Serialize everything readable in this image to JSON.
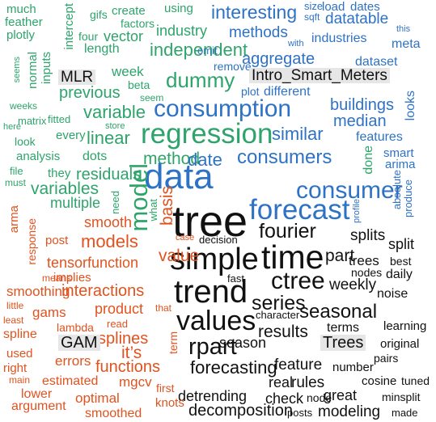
{
  "colors": {
    "green": "#2ea46b",
    "blue": "#2e72c6",
    "orange": "#e0531f",
    "black": "#111111",
    "tag_bg": "#e6e6e6"
  },
  "words": [
    {
      "text": "much",
      "c": "green"
    },
    {
      "text": "feather",
      "c": "green"
    },
    {
      "text": "plotly",
      "c": "green"
    },
    {
      "text": "seems",
      "c": "green"
    },
    {
      "text": "normal",
      "c": "green"
    },
    {
      "text": "inputs",
      "c": "green"
    },
    {
      "text": "intercept",
      "c": "green"
    },
    {
      "text": "gifs",
      "c": "green"
    },
    {
      "text": "four",
      "c": "green"
    },
    {
      "text": "create",
      "c": "green"
    },
    {
      "text": "factors",
      "c": "green"
    },
    {
      "text": "vector",
      "c": "green"
    },
    {
      "text": "length",
      "c": "green"
    },
    {
      "text": "using",
      "c": "green"
    },
    {
      "text": "industry",
      "c": "green"
    },
    {
      "text": "independent",
      "c": "green"
    },
    {
      "text": "omit",
      "c": "blue"
    },
    {
      "text": "remove",
      "c": "blue"
    },
    {
      "text": "interesting",
      "c": "blue"
    },
    {
      "text": "methods",
      "c": "blue"
    },
    {
      "text": "aggregate",
      "c": "blue"
    },
    {
      "text": "with",
      "c": "blue"
    },
    {
      "text": "size",
      "c": "blue"
    },
    {
      "text": "sqft",
      "c": "blue"
    },
    {
      "text": "load",
      "c": "blue"
    },
    {
      "text": "dates",
      "c": "blue"
    },
    {
      "text": "datatable",
      "c": "blue"
    },
    {
      "text": "this",
      "c": "blue"
    },
    {
      "text": "industries",
      "c": "blue"
    },
    {
      "text": "meta",
      "c": "blue"
    },
    {
      "text": "dataset",
      "c": "blue"
    },
    {
      "text": "MLR",
      "c": "black",
      "tag": true
    },
    {
      "text": "Intro_Smart_Meters",
      "c": "black",
      "tag": true
    },
    {
      "text": "week",
      "c": "green"
    },
    {
      "text": "beta",
      "c": "green"
    },
    {
      "text": "dummy",
      "c": "green"
    },
    {
      "text": "seem",
      "c": "green"
    },
    {
      "text": "plot",
      "c": "blue"
    },
    {
      "text": "different",
      "c": "blue"
    },
    {
      "text": "weeks",
      "c": "green"
    },
    {
      "text": "matrix",
      "c": "green"
    },
    {
      "text": "fitted",
      "c": "green"
    },
    {
      "text": "previous",
      "c": "green"
    },
    {
      "text": "variable",
      "c": "green"
    },
    {
      "text": "consumption",
      "c": "blue"
    },
    {
      "text": "buildings",
      "c": "blue"
    },
    {
      "text": "looks",
      "c": "blue"
    },
    {
      "text": "here",
      "c": "green"
    },
    {
      "text": "look",
      "c": "green"
    },
    {
      "text": "every",
      "c": "green"
    },
    {
      "text": "linear",
      "c": "green"
    },
    {
      "text": "store",
      "c": "green"
    },
    {
      "text": "regression",
      "c": "green"
    },
    {
      "text": "similar",
      "c": "blue"
    },
    {
      "text": "median",
      "c": "blue"
    },
    {
      "text": "features",
      "c": "blue"
    },
    {
      "text": "smart",
      "c": "blue"
    },
    {
      "text": "arima",
      "c": "blue"
    },
    {
      "text": "analysis",
      "c": "green"
    },
    {
      "text": "dots",
      "c": "green"
    },
    {
      "text": "method",
      "c": "green"
    },
    {
      "text": "date",
      "c": "blue"
    },
    {
      "text": "consumers",
      "c": "blue"
    },
    {
      "text": "done",
      "c": "green"
    },
    {
      "text": "file",
      "c": "green"
    },
    {
      "text": "they",
      "c": "green"
    },
    {
      "text": "must",
      "c": "green"
    },
    {
      "text": "residuals",
      "c": "green"
    },
    {
      "text": "variables",
      "c": "green"
    },
    {
      "text": "data",
      "c": "blue"
    },
    {
      "text": "consumer",
      "c": "blue"
    },
    {
      "text": "absolute",
      "c": "blue"
    },
    {
      "text": "produce",
      "c": "blue"
    },
    {
      "text": "need",
      "c": "green"
    },
    {
      "text": "model",
      "c": "green"
    },
    {
      "text": "multiple",
      "c": "green"
    },
    {
      "text": "what",
      "c": "green"
    },
    {
      "text": "basis",
      "c": "orange"
    },
    {
      "text": "forecast",
      "c": "blue"
    },
    {
      "text": "profile",
      "c": "blue"
    },
    {
      "text": "arma",
      "c": "orange"
    },
    {
      "text": "response",
      "c": "orange"
    },
    {
      "text": "smooth",
      "c": "orange"
    },
    {
      "text": "tree",
      "c": "black"
    },
    {
      "text": "fourier",
      "c": "black"
    },
    {
      "text": "splits",
      "c": "black"
    },
    {
      "text": "split",
      "c": "black"
    },
    {
      "text": "post",
      "c": "orange"
    },
    {
      "text": "models",
      "c": "orange"
    },
    {
      "text": "case",
      "c": "orange"
    },
    {
      "text": "decision",
      "c": "black"
    },
    {
      "text": "time",
      "c": "black"
    },
    {
      "text": "simple",
      "c": "black"
    },
    {
      "text": "part",
      "c": "black"
    },
    {
      "text": "trees",
      "c": "black"
    },
    {
      "text": "best",
      "c": "black"
    },
    {
      "text": "tensorfunction",
      "c": "orange"
    },
    {
      "text": "value",
      "c": "orange"
    },
    {
      "text": "nodes",
      "c": "black"
    },
    {
      "text": "daily",
      "c": "black"
    },
    {
      "text": "means",
      "c": "orange"
    },
    {
      "text": "implies",
      "c": "orange"
    },
    {
      "text": "smoothing",
      "c": "orange"
    },
    {
      "text": "interactions",
      "c": "orange"
    },
    {
      "text": "fast",
      "c": "black"
    },
    {
      "text": "ctree",
      "c": "black"
    },
    {
      "text": "weekly",
      "c": "black"
    },
    {
      "text": "noise",
      "c": "black"
    },
    {
      "text": "trend",
      "c": "black"
    },
    {
      "text": "little",
      "c": "orange"
    },
    {
      "text": "least",
      "c": "orange"
    },
    {
      "text": "gams",
      "c": "orange"
    },
    {
      "text": "product",
      "c": "orange"
    },
    {
      "text": "that",
      "c": "orange"
    },
    {
      "text": "series",
      "c": "black"
    },
    {
      "text": "seasonal",
      "c": "black"
    },
    {
      "text": "character",
      "c": "black"
    },
    {
      "text": "spline",
      "c": "orange"
    },
    {
      "text": "lambda",
      "c": "orange"
    },
    {
      "text": "read",
      "c": "orange"
    },
    {
      "text": "splines",
      "c": "orange"
    },
    {
      "text": "values",
      "c": "black"
    },
    {
      "text": "results",
      "c": "black"
    },
    {
      "text": "terms",
      "c": "black"
    },
    {
      "text": "learning",
      "c": "black"
    },
    {
      "text": "GAM",
      "c": "black",
      "tag": true
    },
    {
      "text": "it’s",
      "c": "orange"
    },
    {
      "text": "term",
      "c": "orange"
    },
    {
      "text": "season",
      "c": "black"
    },
    {
      "text": "Trees",
      "c": "black",
      "tag": true
    },
    {
      "text": "original",
      "c": "black"
    },
    {
      "text": "used",
      "c": "orange"
    },
    {
      "text": "errors",
      "c": "orange"
    },
    {
      "text": "rpart",
      "c": "black"
    },
    {
      "text": "pairs",
      "c": "black"
    },
    {
      "text": "right",
      "c": "orange"
    },
    {
      "text": "functions",
      "c": "orange"
    },
    {
      "text": "forecasting",
      "c": "black"
    },
    {
      "text": "feature",
      "c": "black"
    },
    {
      "text": "number",
      "c": "black"
    },
    {
      "text": "main",
      "c": "orange"
    },
    {
      "text": "estimated",
      "c": "orange"
    },
    {
      "text": "mgcv",
      "c": "orange"
    },
    {
      "text": "real",
      "c": "black"
    },
    {
      "text": "rules",
      "c": "black"
    },
    {
      "text": "cosine",
      "c": "black"
    },
    {
      "text": "tuned",
      "c": "black"
    },
    {
      "text": "lower",
      "c": "orange"
    },
    {
      "text": "first",
      "c": "orange"
    },
    {
      "text": "detrending",
      "c": "black"
    },
    {
      "text": "check",
      "c": "black"
    },
    {
      "text": "node",
      "c": "black"
    },
    {
      "text": "great",
      "c": "black"
    },
    {
      "text": "minsplit",
      "c": "black"
    },
    {
      "text": "argument",
      "c": "orange"
    },
    {
      "text": "optimal",
      "c": "orange"
    },
    {
      "text": "knots",
      "c": "orange"
    },
    {
      "text": "decomposition",
      "c": "black"
    },
    {
      "text": "modeling",
      "c": "black"
    },
    {
      "text": "smoothed",
      "c": "orange"
    },
    {
      "text": "posts",
      "c": "black"
    },
    {
      "text": "made",
      "c": "black"
    }
  ]
}
